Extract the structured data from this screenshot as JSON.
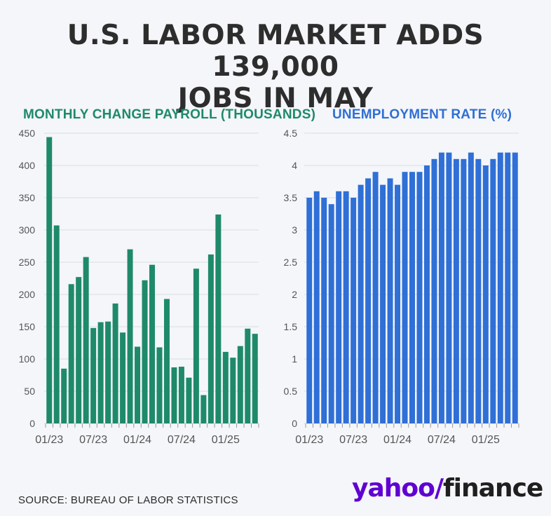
{
  "title": {
    "line1": "U.S. LABOR MARKET ADDS 139,000",
    "line2": "JOBS IN MAY"
  },
  "source": "SOURCE: BUREAU OF LABOR STATISTICS",
  "logo": {
    "yahoo": "yahoo",
    "slash": "/",
    "finance": "finance"
  },
  "colors": {
    "payroll": "#1e8a6a",
    "unemployment": "#2f6fd6",
    "grid": "#d9dde3",
    "axis_text": "#555555",
    "logo_purple": "#6001d2"
  },
  "chart_data": [
    {
      "type": "bar",
      "title": "MONTHLY CHANGE PAYROLL (THOUSANDS)",
      "color": "#1e8a6a",
      "x": [
        "01/23",
        "02/23",
        "03/23",
        "04/23",
        "05/23",
        "06/23",
        "07/23",
        "08/23",
        "09/23",
        "10/23",
        "11/23",
        "12/23",
        "01/24",
        "02/24",
        "03/24",
        "04/24",
        "05/24",
        "06/24",
        "07/24",
        "08/24",
        "09/24",
        "10/24",
        "11/24",
        "12/24",
        "01/25",
        "02/25",
        "03/25",
        "04/25",
        "05/25"
      ],
      "values": [
        444,
        307,
        85,
        216,
        227,
        258,
        148,
        157,
        158,
        186,
        141,
        270,
        119,
        222,
        246,
        118,
        193,
        87,
        88,
        71,
        240,
        44,
        262,
        324,
        111,
        102,
        120,
        147,
        139
      ],
      "x_tick_labels": [
        "01/23",
        "07/23",
        "01/24",
        "07/24",
        "01/25"
      ],
      "y_ticks": [
        0,
        50,
        100,
        150,
        200,
        250,
        300,
        350,
        400,
        450
      ],
      "ylim": [
        0,
        450
      ],
      "grid": true
    },
    {
      "type": "bar",
      "title": "UNEMPLOYMENT RATE (%)",
      "color": "#2f6fd6",
      "x": [
        "01/23",
        "02/23",
        "03/23",
        "04/23",
        "05/23",
        "06/23",
        "07/23",
        "08/23",
        "09/23",
        "10/23",
        "11/23",
        "12/23",
        "01/24",
        "02/24",
        "03/24",
        "04/24",
        "05/24",
        "06/24",
        "07/24",
        "08/24",
        "09/24",
        "10/24",
        "11/24",
        "12/24",
        "01/25",
        "02/25",
        "03/25",
        "04/25",
        "05/25"
      ],
      "values": [
        3.5,
        3.6,
        3.5,
        3.4,
        3.6,
        3.6,
        3.5,
        3.7,
        3.8,
        3.9,
        3.7,
        3.8,
        3.7,
        3.9,
        3.9,
        3.9,
        4.0,
        4.1,
        4.2,
        4.2,
        4.1,
        4.1,
        4.2,
        4.1,
        4.0,
        4.1,
        4.2,
        4.2,
        4.2
      ],
      "x_tick_labels": [
        "01/23",
        "07/23",
        "01/24",
        "07/24",
        "01/25"
      ],
      "y_ticks": [
        0,
        0.5,
        1,
        1.5,
        2,
        2.5,
        3,
        3.5,
        4,
        4.5
      ],
      "ylim": [
        0,
        4.5
      ],
      "grid": true
    }
  ]
}
